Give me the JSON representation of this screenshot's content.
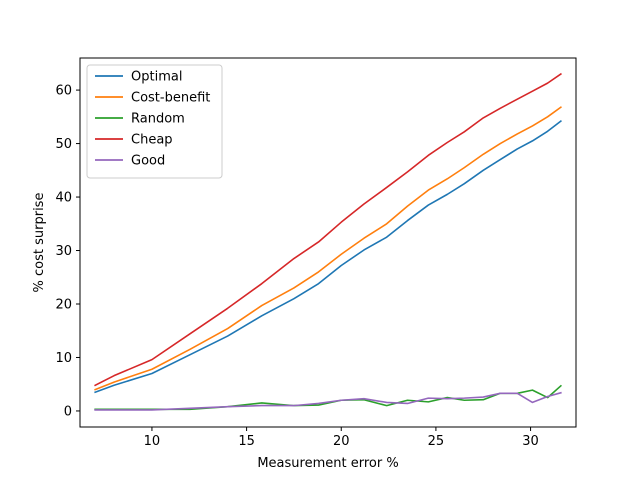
{
  "chart_data": {
    "type": "line",
    "title": "",
    "xlabel": "Measurement error %",
    "ylabel": "% cost surprise",
    "xlim": [
      6.2,
      32.4
    ],
    "ylim": [
      -3,
      66
    ],
    "xticks": [
      10,
      15,
      20,
      25,
      30
    ],
    "yticks": [
      0,
      10,
      20,
      30,
      40,
      50,
      60
    ],
    "grid": false,
    "legend_position": "top-left",
    "x": [
      7.0,
      8.0,
      10.0,
      12.0,
      14.0,
      15.8,
      17.5,
      18.8,
      20.0,
      21.2,
      22.4,
      23.5,
      24.6,
      25.6,
      26.5,
      27.5,
      28.4,
      29.3,
      30.1,
      30.9,
      31.6
    ],
    "series": [
      {
        "name": "Optimal",
        "color": "#1f77b4",
        "values": [
          3.5,
          4.8,
          7.0,
          10.5,
          14.0,
          17.8,
          21.0,
          23.8,
          27.2,
          30.1,
          32.5,
          35.6,
          38.5,
          40.5,
          42.5,
          45.0,
          47.0,
          49.0,
          50.5,
          52.3,
          54.2
        ]
      },
      {
        "name": "Cost-benefit",
        "color": "#ff7f0e",
        "values": [
          4.0,
          5.4,
          7.8,
          11.5,
          15.4,
          19.7,
          23.0,
          26.0,
          29.3,
          32.3,
          35.0,
          38.3,
          41.3,
          43.4,
          45.5,
          48.0,
          50.0,
          51.8,
          53.3,
          55.0,
          56.8
        ]
      },
      {
        "name": "Random",
        "color": "#2ca02c",
        "values": [
          0.3,
          0.3,
          0.3,
          0.3,
          0.8,
          1.5,
          1.0,
          1.1,
          2.0,
          2.1,
          1.0,
          2.0,
          1.7,
          2.5,
          2.0,
          2.1,
          3.3,
          3.3,
          3.9,
          2.5,
          4.7
        ]
      },
      {
        "name": "Cheap",
        "color": "#d62728",
        "values": [
          4.8,
          6.6,
          9.6,
          14.4,
          19.2,
          23.8,
          28.5,
          31.6,
          35.3,
          38.7,
          41.8,
          44.7,
          47.8,
          50.2,
          52.2,
          54.8,
          56.6,
          58.3,
          59.8,
          61.3,
          63.0
        ]
      },
      {
        "name": "Good",
        "color": "#9467bd",
        "values": [
          0.2,
          0.2,
          0.2,
          0.5,
          0.8,
          1.0,
          1.0,
          1.4,
          2.0,
          2.3,
          1.6,
          1.4,
          2.4,
          2.3,
          2.4,
          2.6,
          3.3,
          3.3,
          1.6,
          2.7,
          3.4
        ]
      }
    ]
  }
}
